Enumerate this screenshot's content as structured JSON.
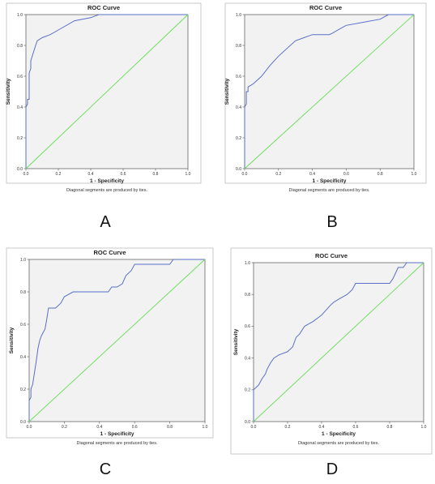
{
  "chart_data": [
    {
      "type": "line",
      "panel": "A",
      "title": "ROC Curve",
      "xlabel": "1 - Specificity",
      "ylabel": "Sensitivity",
      "xlim": [
        0,
        1
      ],
      "ylim": [
        0,
        1
      ],
      "xticks": [
        "0.0",
        "0.2",
        "0.4",
        "0.6",
        "0.8",
        "1.0"
      ],
      "yticks": [
        "0.0",
        "0.2",
        "0.4",
        "0.6",
        "0.8",
        "1.0"
      ],
      "note": "Diagonal segments are produced by ties.",
      "grid": false,
      "series": [
        {
          "color": "#5b6fc8",
          "x": [
            0,
            0,
            0.01,
            0.01,
            0.02,
            0.02,
            0.03,
            0.03,
            0.06,
            0.07,
            0.1,
            0.15,
            0.2,
            0.3,
            0.4,
            0.45,
            1
          ],
          "y": [
            0,
            0.4,
            0.42,
            0.45,
            0.45,
            0.62,
            0.65,
            0.7,
            0.8,
            0.83,
            0.85,
            0.87,
            0.9,
            0.96,
            0.98,
            1,
            1
          ]
        },
        {
          "color": "#66dd55",
          "x": [
            0,
            1
          ],
          "y": [
            0,
            1
          ]
        }
      ]
    },
    {
      "type": "line",
      "panel": "B",
      "title": "ROC Curve",
      "xlabel": "1 - Specificity",
      "ylabel": "Sensitivity",
      "xlim": [
        0,
        1
      ],
      "ylim": [
        0,
        1
      ],
      "xticks": [
        "0.0",
        "0.2",
        "0.4",
        "0.6",
        "0.8",
        "1.0"
      ],
      "yticks": [
        "0.0",
        "0.2",
        "0.4",
        "0.6",
        "0.8",
        "1.0"
      ],
      "note": "Diagonal segments are produced by ties.",
      "grid": false,
      "series": [
        {
          "color": "#5b6fc8",
          "x": [
            0,
            0,
            0.01,
            0.01,
            0.02,
            0.02,
            0.05,
            0.07,
            0.1,
            0.15,
            0.2,
            0.3,
            0.35,
            0.4,
            0.5,
            0.52,
            0.55,
            0.6,
            0.7,
            0.8,
            0.85,
            1
          ],
          "y": [
            0,
            0.4,
            0.42,
            0.5,
            0.5,
            0.53,
            0.55,
            0.57,
            0.6,
            0.67,
            0.73,
            0.83,
            0.85,
            0.87,
            0.87,
            0.88,
            0.9,
            0.93,
            0.95,
            0.97,
            1,
            1
          ]
        },
        {
          "color": "#66dd55",
          "x": [
            0,
            1
          ],
          "y": [
            0,
            1
          ]
        }
      ]
    },
    {
      "type": "line",
      "panel": "C",
      "title": "ROC Curve",
      "xlabel": "1 - Specificity",
      "ylabel": "Sensitivity",
      "xlim": [
        0,
        1
      ],
      "ylim": [
        0,
        1
      ],
      "xticks": [
        "0.0",
        "0.2",
        "0.4",
        "0.6",
        "0.8",
        "1.0"
      ],
      "yticks": [
        "0.0",
        "0.2",
        "0.4",
        "0.6",
        "0.8",
        "1.0"
      ],
      "note": "Diagonal segments are produced by ties.",
      "grid": false,
      "series": [
        {
          "color": "#5b6fc8",
          "x": [
            0,
            0,
            0.01,
            0.01,
            0.02,
            0.03,
            0.04,
            0.05,
            0.06,
            0.07,
            0.09,
            0.1,
            0.11,
            0.12,
            0.15,
            0.18,
            0.2,
            0.25,
            0.35,
            0.45,
            0.47,
            0.5,
            0.53,
            0.55,
            0.58,
            0.6,
            0.65,
            0.8,
            0.82,
            1
          ],
          "y": [
            0,
            0.13,
            0.15,
            0.2,
            0.23,
            0.3,
            0.37,
            0.45,
            0.5,
            0.53,
            0.57,
            0.63,
            0.7,
            0.7,
            0.7,
            0.73,
            0.77,
            0.8,
            0.8,
            0.8,
            0.83,
            0.83,
            0.85,
            0.9,
            0.93,
            0.97,
            0.97,
            0.97,
            1,
            1
          ]
        },
        {
          "color": "#66dd55",
          "x": [
            0,
            1
          ],
          "y": [
            0,
            1
          ]
        }
      ]
    },
    {
      "type": "line",
      "panel": "D",
      "title": "ROC Curve",
      "xlabel": "1 - Specificity",
      "ylabel": "Sensitivity",
      "xlim": [
        0,
        1
      ],
      "ylim": [
        0,
        1
      ],
      "xticks": [
        "0.0",
        "0.2",
        "0.4",
        "0.6",
        "0.8",
        "1.0"
      ],
      "yticks": [
        "0.0",
        "0.2",
        "0.4",
        "0.6",
        "0.8",
        "1.0"
      ],
      "note": "Diagonal segments are produced by ties.",
      "grid": false,
      "series": [
        {
          "color": "#5b6fc8",
          "x": [
            0,
            0,
            0.03,
            0.05,
            0.07,
            0.08,
            0.1,
            0.12,
            0.15,
            0.2,
            0.23,
            0.25,
            0.27,
            0.3,
            0.35,
            0.4,
            0.45,
            0.47,
            0.5,
            0.55,
            0.58,
            0.6,
            0.7,
            0.8,
            0.82,
            0.85,
            0.88,
            0.9,
            1
          ],
          "y": [
            0,
            0.2,
            0.23,
            0.27,
            0.3,
            0.33,
            0.37,
            0.4,
            0.42,
            0.44,
            0.47,
            0.53,
            0.55,
            0.6,
            0.63,
            0.67,
            0.73,
            0.75,
            0.77,
            0.8,
            0.83,
            0.87,
            0.87,
            0.87,
            0.9,
            0.97,
            0.97,
            1,
            1
          ]
        },
        {
          "color": "#66dd55",
          "x": [
            0,
            1
          ],
          "y": [
            0,
            1
          ]
        }
      ]
    }
  ]
}
